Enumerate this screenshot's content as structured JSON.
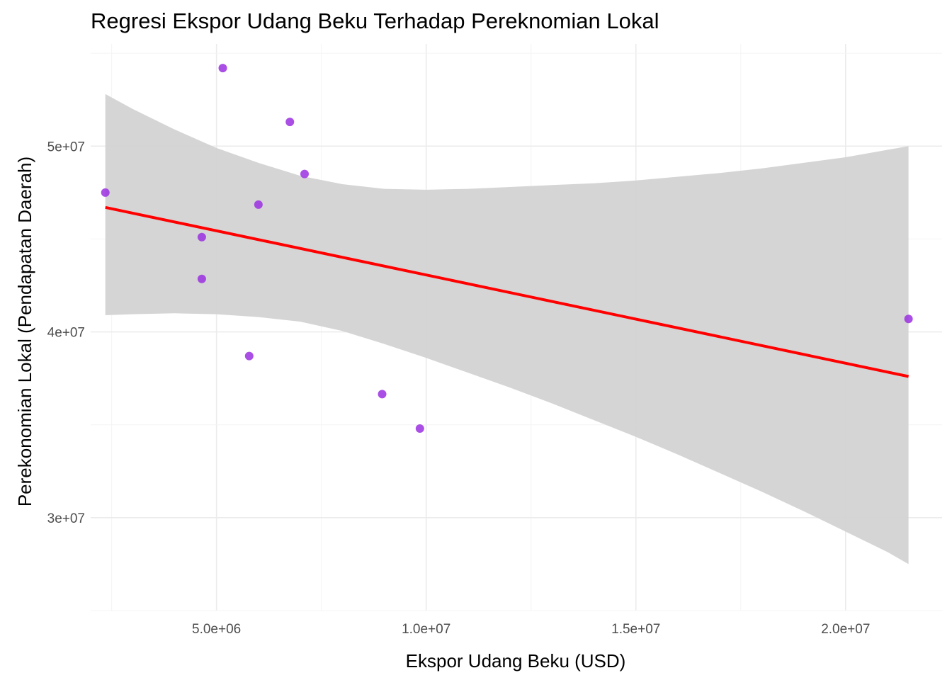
{
  "chart_data": {
    "type": "scatter",
    "title": "Regresi Ekspor Udang Beku Terhadap Pereknomian Lokal",
    "xlabel": "Ekspor Udang Beku (USD)",
    "ylabel": "Perekonomian Lokal (Pendapatan Daerah)",
    "xlim": [
      2000000,
      22300000
    ],
    "ylim": [
      25000000,
      55500000
    ],
    "x_ticks": [
      5000000,
      10000000,
      15000000,
      20000000
    ],
    "x_tick_labels": [
      "5.0e+06",
      "1.0e+07",
      "1.5e+07",
      "2.0e+07"
    ],
    "y_ticks": [
      30000000,
      40000000,
      50000000
    ],
    "y_tick_labels": [
      "3e+07",
      "4e+07",
      "5e+07"
    ],
    "grid": true,
    "point_color": "#9b30e0",
    "points": [
      {
        "x": 2350000,
        "y": 47500000
      },
      {
        "x": 4650000,
        "y": 45100000
      },
      {
        "x": 4650000,
        "y": 42850000
      },
      {
        "x": 5150000,
        "y": 54200000
      },
      {
        "x": 5780000,
        "y": 38700000
      },
      {
        "x": 6000000,
        "y": 46850000
      },
      {
        "x": 6750000,
        "y": 51300000
      },
      {
        "x": 7100000,
        "y": 48500000
      },
      {
        "x": 8950000,
        "y": 36650000
      },
      {
        "x": 9850000,
        "y": 34800000
      },
      {
        "x": 21500000,
        "y": 40700000
      }
    ],
    "regression": {
      "color": "#ff0000",
      "x": [
        2350000,
        21500000
      ],
      "y": [
        46700000,
        37600000
      ]
    },
    "confidence_band": {
      "color": "#d3d3d3",
      "x": [
        2350000,
        3000000,
        4000000,
        5000000,
        6000000,
        7000000,
        8000000,
        9000000,
        10000000,
        11000000,
        12000000,
        13000000,
        14000000,
        15000000,
        16000000,
        17000000,
        18000000,
        19000000,
        20000000,
        21000000,
        21500000
      ],
      "upper": [
        52800000,
        52000000,
        50900000,
        49900000,
        49100000,
        48400000,
        47950000,
        47700000,
        47650000,
        47700000,
        47800000,
        47900000,
        48000000,
        48150000,
        48350000,
        48550000,
        48800000,
        49100000,
        49400000,
        49800000,
        50000000
      ],
      "lower": [
        40900000,
        40950000,
        41000000,
        40950000,
        40800000,
        40550000,
        40050000,
        39350000,
        38600000,
        37800000,
        37000000,
        36150000,
        35250000,
        34350000,
        33400000,
        32400000,
        31400000,
        30350000,
        29250000,
        28150000,
        27500000
      ]
    }
  }
}
